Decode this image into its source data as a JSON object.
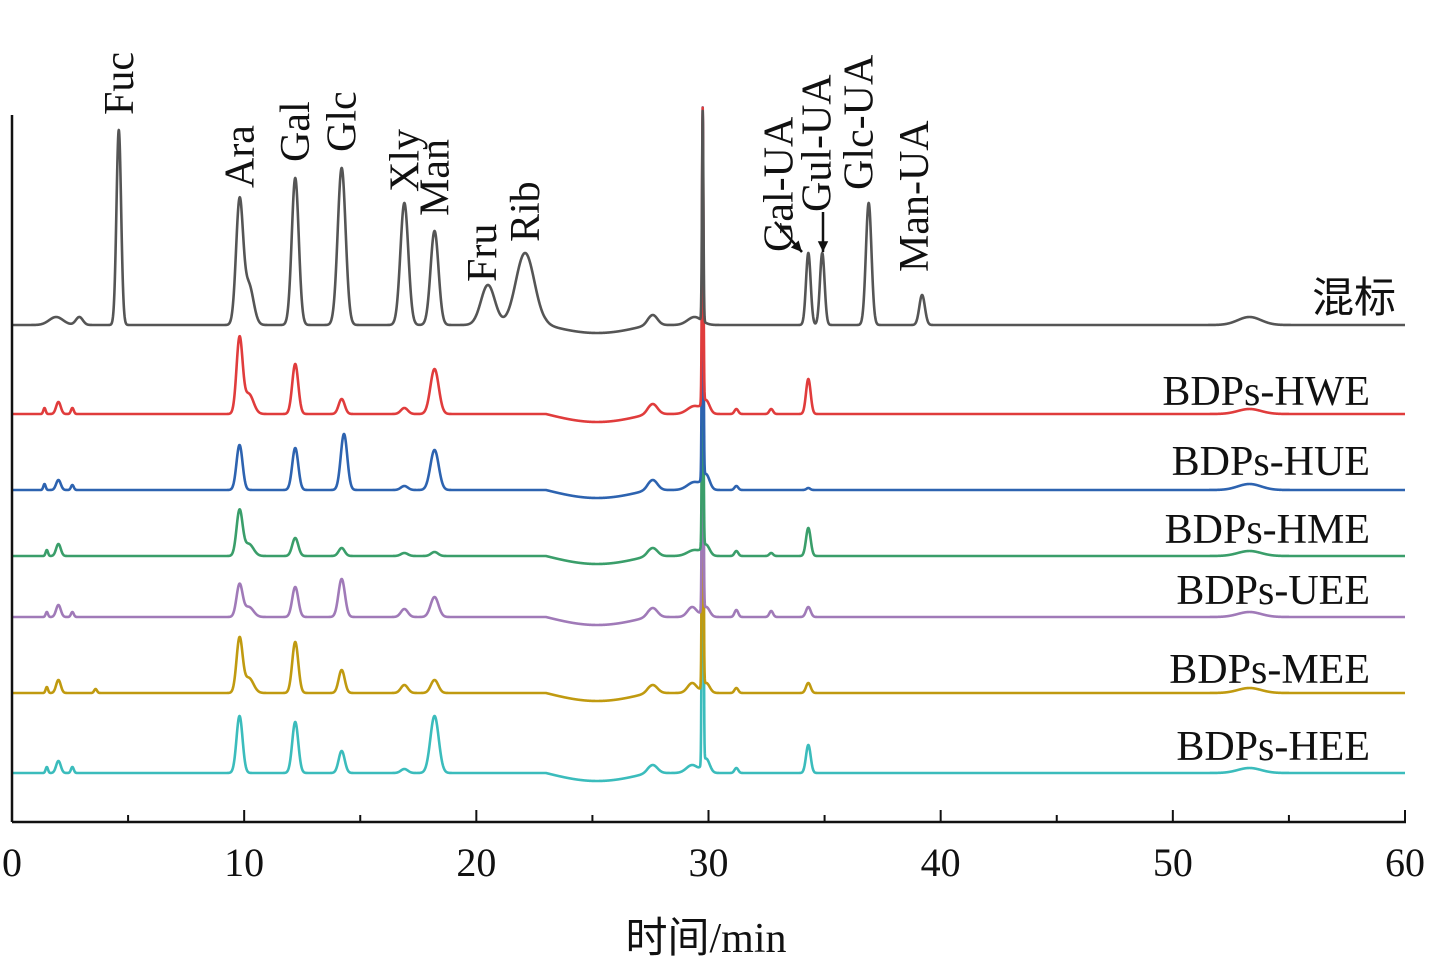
{
  "chart_data": {
    "type": "line",
    "title": "",
    "xlabel": "时间/min",
    "ylabel": "",
    "xlim": [
      0,
      60
    ],
    "xticks": [
      0,
      10,
      20,
      30,
      40,
      50,
      60
    ],
    "ylim": [
      0,
      707
    ],
    "grid": false,
    "legend": "inline-right",
    "series": [
      {
        "name": "混标",
        "color": "#555555",
        "offset": 497,
        "peaks": [
          [
            1.9,
            8,
            0.3
          ],
          [
            2.9,
            8,
            0.15
          ],
          [
            4.6,
            195,
            0.1
          ],
          [
            9.8,
            122,
            0.15
          ],
          [
            10.2,
            40,
            0.2
          ],
          [
            12.2,
            147,
            0.15
          ],
          [
            14.2,
            157,
            0.17
          ],
          [
            16.9,
            122,
            0.17
          ],
          [
            18.2,
            94,
            0.17
          ],
          [
            20.5,
            40,
            0.3
          ],
          [
            22.1,
            72,
            0.4
          ],
          [
            27.6,
            10,
            0.2
          ],
          [
            29.4,
            8,
            0.3
          ],
          [
            29.75,
            210,
            0.03
          ],
          [
            34.3,
            72,
            0.1
          ],
          [
            34.9,
            72,
            0.1
          ],
          [
            36.9,
            122,
            0.12
          ],
          [
            39.2,
            30,
            0.12
          ],
          [
            53.3,
            8,
            0.5
          ]
        ]
      },
      {
        "name": "BDPs-HWE",
        "color": "#e03c3c",
        "offset": 408,
        "peaks": [
          [
            1.4,
            6,
            0.05
          ],
          [
            2.0,
            12,
            0.1
          ],
          [
            2.6,
            6,
            0.06
          ],
          [
            9.8,
            75,
            0.13
          ],
          [
            10.2,
            20,
            0.2
          ],
          [
            12.2,
            50,
            0.13
          ],
          [
            14.2,
            15,
            0.13
          ],
          [
            16.9,
            6,
            0.15
          ],
          [
            18.2,
            45,
            0.18
          ],
          [
            27.6,
            10,
            0.2
          ],
          [
            29.4,
            8,
            0.3
          ],
          [
            29.75,
            295,
            0.03
          ],
          [
            29.9,
            12,
            0.15
          ],
          [
            31.2,
            5,
            0.08
          ],
          [
            32.7,
            5,
            0.08
          ],
          [
            34.3,
            35,
            0.1
          ],
          [
            53.3,
            5,
            0.5
          ]
        ]
      },
      {
        "name": "BDPs-HUE",
        "color": "#2d63b0",
        "offset": 332,
        "peaks": [
          [
            1.4,
            6,
            0.05
          ],
          [
            2.0,
            10,
            0.1
          ],
          [
            2.6,
            5,
            0.06
          ],
          [
            9.8,
            45,
            0.13
          ],
          [
            12.2,
            42,
            0.13
          ],
          [
            14.3,
            56,
            0.14
          ],
          [
            16.9,
            4,
            0.15
          ],
          [
            18.2,
            40,
            0.18
          ],
          [
            27.6,
            10,
            0.2
          ],
          [
            29.4,
            8,
            0.3
          ],
          [
            29.75,
            370,
            0.03
          ],
          [
            29.9,
            14,
            0.15
          ],
          [
            31.2,
            4,
            0.08
          ],
          [
            34.3,
            2,
            0.08
          ],
          [
            53.3,
            6,
            0.5
          ]
        ]
      },
      {
        "name": "BDPs-HME",
        "color": "#3a9e6a",
        "offset": 266,
        "peaks": [
          [
            1.5,
            6,
            0.05
          ],
          [
            2.0,
            12,
            0.1
          ],
          [
            9.8,
            45,
            0.13
          ],
          [
            10.2,
            12,
            0.2
          ],
          [
            12.2,
            18,
            0.13
          ],
          [
            14.2,
            8,
            0.13
          ],
          [
            16.9,
            3,
            0.15
          ],
          [
            18.2,
            4,
            0.15
          ],
          [
            27.6,
            8,
            0.2
          ],
          [
            29.4,
            6,
            0.3
          ],
          [
            29.75,
            270,
            0.03
          ],
          [
            29.9,
            10,
            0.15
          ],
          [
            31.2,
            5,
            0.08
          ],
          [
            32.7,
            3,
            0.08
          ],
          [
            34.3,
            28,
            0.1
          ],
          [
            53.3,
            5,
            0.5
          ]
        ]
      },
      {
        "name": "BDPs-UEE",
        "color": "#a07ab8",
        "offset": 205,
        "peaks": [
          [
            1.5,
            5,
            0.05
          ],
          [
            2.0,
            12,
            0.1
          ],
          [
            2.6,
            5,
            0.06
          ],
          [
            9.8,
            32,
            0.13
          ],
          [
            10.2,
            10,
            0.2
          ],
          [
            12.2,
            30,
            0.13
          ],
          [
            14.2,
            38,
            0.14
          ],
          [
            16.9,
            8,
            0.15
          ],
          [
            18.2,
            20,
            0.17
          ],
          [
            27.6,
            9,
            0.2
          ],
          [
            29.3,
            10,
            0.2
          ],
          [
            29.75,
            330,
            0.03
          ],
          [
            29.9,
            10,
            0.15
          ],
          [
            31.2,
            7,
            0.08
          ],
          [
            32.7,
            6,
            0.08
          ],
          [
            34.3,
            10,
            0.1
          ],
          [
            53.3,
            5,
            0.5
          ]
        ]
      },
      {
        "name": "BDPs-MEE",
        "color": "#c09a10",
        "offset": 129,
        "peaks": [
          [
            1.5,
            6,
            0.05
          ],
          [
            2.0,
            13,
            0.1
          ],
          [
            3.6,
            4,
            0.06
          ],
          [
            9.8,
            54,
            0.13
          ],
          [
            10.2,
            15,
            0.2
          ],
          [
            12.2,
            51,
            0.13
          ],
          [
            14.2,
            23,
            0.13
          ],
          [
            16.9,
            8,
            0.15
          ],
          [
            18.2,
            13,
            0.16
          ],
          [
            27.6,
            8,
            0.2
          ],
          [
            29.3,
            10,
            0.2
          ],
          [
            29.75,
            420,
            0.03
          ],
          [
            29.9,
            10,
            0.15
          ],
          [
            31.2,
            5,
            0.08
          ],
          [
            34.3,
            10,
            0.1
          ],
          [
            53.3,
            5,
            0.5
          ]
        ]
      },
      {
        "name": "BDPs-HEE",
        "color": "#3bbcbc",
        "offset": 49,
        "peaks": [
          [
            1.5,
            6,
            0.05
          ],
          [
            2.0,
            12,
            0.1
          ],
          [
            2.6,
            6,
            0.06
          ],
          [
            9.8,
            57,
            0.13
          ],
          [
            12.2,
            51,
            0.13
          ],
          [
            14.2,
            22,
            0.13
          ],
          [
            16.9,
            4,
            0.15
          ],
          [
            18.2,
            57,
            0.18
          ],
          [
            27.6,
            8,
            0.2
          ],
          [
            29.3,
            8,
            0.25
          ],
          [
            29.75,
            560,
            0.03
          ],
          [
            29.9,
            14,
            0.15
          ],
          [
            31.2,
            5,
            0.08
          ],
          [
            34.3,
            28,
            0.1
          ],
          [
            53.3,
            5,
            0.5
          ]
        ]
      }
    ],
    "annotations": [
      {
        "label": "Fuc",
        "x": 4.6
      },
      {
        "label": "Ara",
        "x": 9.8
      },
      {
        "label": "Gal",
        "x": 12.2
      },
      {
        "label": "Glc",
        "x": 14.2
      },
      {
        "label": "Xly",
        "x": 16.9
      },
      {
        "label": "Man",
        "x": 18.2
      },
      {
        "label": "Fru",
        "x": 20.5
      },
      {
        "label": "Rib",
        "x": 22.1
      },
      {
        "label": "Gal-UA",
        "x": 34.3
      },
      {
        "label": "Gul-UA",
        "x": 34.9
      },
      {
        "label": "Glc-UA",
        "x": 36.9
      },
      {
        "label": "Man-UA",
        "x": 39.2
      }
    ]
  }
}
